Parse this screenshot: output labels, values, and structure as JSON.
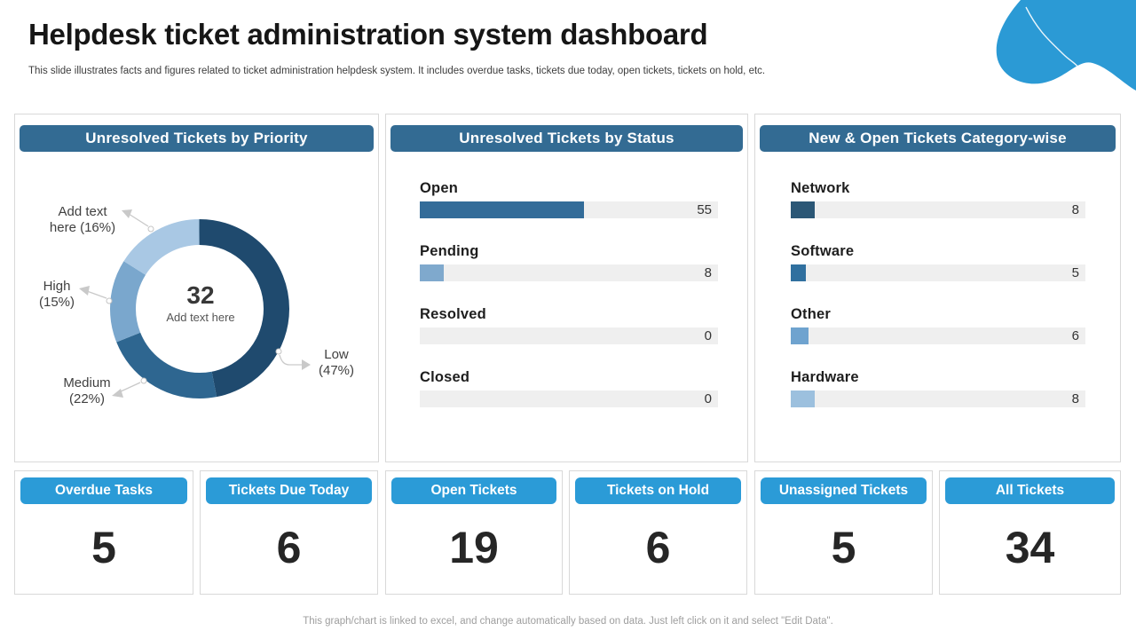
{
  "header": {
    "title": "Helpdesk ticket administration system dashboard",
    "subtitle": "This slide illustrates facts and figures related to ticket administration helpdesk system. It includes overdue tasks, tickets due today, open tickets, tickets on hold, etc."
  },
  "colors": {
    "panel_header_bg": "#336B93",
    "kpi_header_bg": "#2B9BD7",
    "corner_blob": "#2B9AD5",
    "bar_track": "#EFEFEF",
    "donut_dark": "#1F4A6E",
    "donut_steel": "#2E6690",
    "donut_medium": "#7AA7CD",
    "donut_light": "#A9C8E4"
  },
  "chart_data": [
    {
      "type": "pie",
      "donut": true,
      "title": "Unresolved Tickets by Priority",
      "center_value": "32",
      "center_label": "Add text here",
      "slices": [
        {
          "label": "Low",
          "pct": 47,
          "color": "#1F4A6E"
        },
        {
          "label": "Medium",
          "pct": 22,
          "color": "#2E6690"
        },
        {
          "label": "High",
          "pct": 15,
          "color": "#7AA7CD"
        },
        {
          "label": "Add text here",
          "pct": 16,
          "color": "#A9C8E4"
        }
      ],
      "callouts": [
        "Add text here (16%)",
        "High (15%)",
        "Medium (22%)",
        "Low (47%)"
      ]
    },
    {
      "type": "bar",
      "orientation": "horizontal",
      "title": "Unresolved Tickets by Status",
      "xlim": [
        0,
        100
      ],
      "categories": [
        "Open",
        "Pending",
        "Resolved",
        "Closed"
      ],
      "values": [
        55,
        8,
        0,
        0
      ],
      "bar_colors": [
        "#336C99",
        "#7FA9CD",
        "#336C99",
        "#7FA9CD"
      ]
    },
    {
      "type": "bar",
      "orientation": "horizontal",
      "title": "New & Open Tickets Category-wise",
      "xlim": [
        0,
        100
      ],
      "categories": [
        "Network",
        "Software",
        "Other",
        "Hardware"
      ],
      "values": [
        8,
        5,
        6,
        8
      ],
      "bar_colors": [
        "#2B5776",
        "#30709F",
        "#6FA3CF",
        "#9CC0DE"
      ]
    }
  ],
  "kpis": [
    {
      "label": "Overdue Tasks",
      "value": "5"
    },
    {
      "label": "Tickets Due Today",
      "value": "6"
    },
    {
      "label": "Open Tickets",
      "value": "19"
    },
    {
      "label": "Tickets on Hold",
      "value": "6"
    },
    {
      "label": "Unassigned Tickets",
      "value": "5"
    },
    {
      "label": "All Tickets",
      "value": "34"
    }
  ],
  "footer": {
    "note": "This graph/chart is linked to excel, and change automatically based on data. Just left click on it and select \"Edit Data\"."
  }
}
